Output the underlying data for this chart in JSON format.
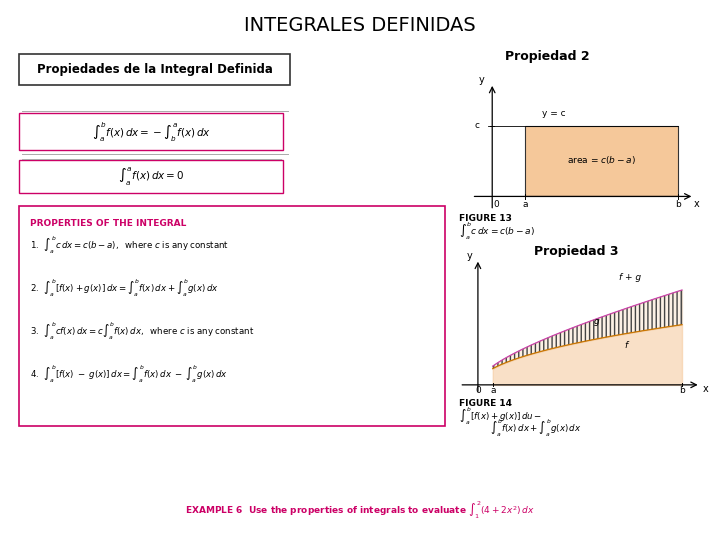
{
  "title": "INTEGRALES DEFINIDAS",
  "title_fontsize": 14,
  "bg_color": "#ffffff",
  "left_box_label": "Propiedades de la Integral Definida",
  "formula1_text": "$\\int_a^b f(x)\\,dx = -\\int_b^a f(x)\\,dx$",
  "formula2_text": "$\\int_a^a f(x)\\,dx = 0$",
  "prop_title": "PROPERTIES OF THE INTEGRAL",
  "prop1": "1.  $\\int_a^b c\\,dx = c(b-a),\\;$ where $c$ is any constant",
  "prop2": "2.  $\\int_a^b [f(x)+g(x)]\\,dx = \\int_a^b f(x)\\,dx + \\int_a^b g(x)\\,dx$",
  "prop3": "3.  $\\int_a^b cf(x)\\,dx = c\\int_a^b f(x)\\,dx,\\;$ where $c$ is any constant",
  "prop4": "4.  $\\int_a^b [f(x)\\;-\\;g(x)]\\,dx = \\int_a^b f(x)\\,dx\\;-\\;\\int_a^b g(x)\\,dx$",
  "example_text": "EXAMPLE 6  Use the properties of integrals to evaluate $\\int_1^2 (4 + 2x^2)\\,dx$",
  "propiedad2_label": "Propiedad 2",
  "fig13_label": "FIGURE 13",
  "fig13_formula": "$\\int_a^b c\\,dx = c(b-a)$",
  "propiedad3_label": "Propiedad 3",
  "fig14_label": "FIGURE 14",
  "fig14_formula1": "$\\int_a^b [f(x)+g(x)]\\,du -$",
  "fig14_formula2": "$\\int_a^b f(x)\\,dx + \\int_a^b g(x)\\,dx$",
  "rect_fill": "#f5c89a",
  "rect_edge": "#8B6914",
  "prop_box_edge": "#cc0066",
  "formula_box_edge": "#cc0066",
  "prop_title_color": "#cc0066",
  "example_color": "#cc0066"
}
